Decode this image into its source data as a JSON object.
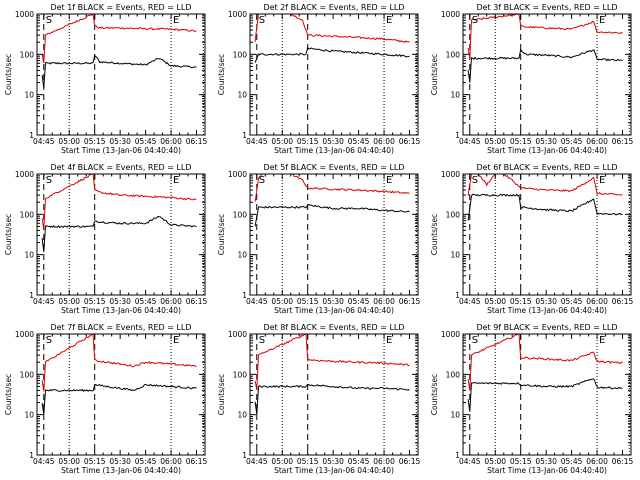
{
  "colors": {
    "events": "#000000",
    "lld": "#e00000",
    "axis": "#000000",
    "background": "#ffffff"
  },
  "chart_data": [
    {
      "type": "line",
      "title": "Det 1f BLACK = Events, RED = LLD",
      "xlabel": "Start Time (13-Jan-06 04:40:40)",
      "ylabel": "Counts/sec",
      "xtick_labels": [
        "04:45",
        "05:00",
        "05:15",
        "05:30",
        "05:45",
        "06:00",
        "06:15"
      ],
      "ytick_labels": [
        "1",
        "10",
        "100",
        "1000"
      ],
      "ylim": [
        1,
        1000
      ],
      "ylog": true,
      "markers": [
        {
          "label": "S",
          "x": "04:45"
        },
        {
          "label": "E",
          "x": "06:00"
        }
      ],
      "series": [
        {
          "color": "#000000",
          "x": [
            "04:44",
            "04:45",
            "04:46",
            "05:14",
            "05:15",
            "05:18",
            "05:30",
            "05:45",
            "05:53",
            "06:00",
            "06:15"
          ],
          "y": [
            30,
            15,
            60,
            60,
            95,
            65,
            60,
            55,
            80,
            52,
            48
          ]
        },
        {
          "color": "#e00000",
          "x": [
            "04:44",
            "04:45",
            "04:46",
            "05:14",
            "05:15",
            "05:18",
            "05:30",
            "05:45",
            "06:00",
            "06:15"
          ],
          "y": [
            100,
            60,
            300,
            1000,
            500,
            450,
            450,
            430,
            420,
            380
          ]
        }
      ]
    },
    {
      "type": "line",
      "title": "Det 2f BLACK = Events, RED = LLD",
      "xlabel": "Start Time (13-Jan-06 04:40:40)",
      "ylabel": "Counts/sec",
      "xtick_labels": [
        "04:45",
        "05:00",
        "05:15",
        "05:30",
        "05:45",
        "06:00",
        "06:15"
      ],
      "ytick_labels": [
        "1",
        "10",
        "100",
        "1000"
      ],
      "ylim": [
        1,
        1000
      ],
      "ylog": true,
      "markers": [
        {
          "label": "S",
          "x": "04:45"
        },
        {
          "label": "E",
          "x": "06:00"
        }
      ],
      "series": [
        {
          "color": "#000000",
          "x": [
            "04:44",
            "04:46",
            "05:14",
            "05:15",
            "05:30",
            "05:45",
            "06:00",
            "06:15"
          ],
          "y": [
            60,
            100,
            100,
            140,
            120,
            110,
            100,
            90
          ]
        },
        {
          "color": "#e00000",
          "x": [
            "04:44",
            "04:46",
            "04:48",
            "04:52",
            "05:05",
            "05:12",
            "05:15",
            "05:30",
            "05:45",
            "06:00",
            "06:15"
          ],
          "y": [
            200,
            1000,
            1000,
            1000,
            1000,
            700,
            300,
            280,
            260,
            240,
            200
          ]
        }
      ]
    },
    {
      "type": "line",
      "title": "Det 3f BLACK = Events, RED = LLD",
      "xlabel": "Start Time (13-Jan-06 04:40:40)",
      "ylabel": "Counts/sec",
      "xtick_labels": [
        "04:45",
        "05:00",
        "05:15",
        "05:30",
        "05:45",
        "06:00",
        "06:15"
      ],
      "ytick_labels": [
        "1",
        "10",
        "100",
        "1000"
      ],
      "ylim": [
        1,
        1000
      ],
      "ylog": true,
      "markers": [
        {
          "label": "S",
          "x": "04:45"
        },
        {
          "label": "E",
          "x": "06:00"
        }
      ],
      "series": [
        {
          "color": "#000000",
          "x": [
            "04:44",
            "04:45",
            "04:46",
            "05:14",
            "05:15",
            "05:18",
            "05:30",
            "05:45",
            "05:58",
            "06:00",
            "06:15"
          ],
          "y": [
            40,
            20,
            80,
            80,
            130,
            100,
            95,
            85,
            130,
            75,
            70
          ]
        },
        {
          "color": "#e00000",
          "x": [
            "04:44",
            "04:45",
            "04:46",
            "05:14",
            "05:15",
            "05:18",
            "05:30",
            "05:45",
            "05:58",
            "06:00",
            "06:15"
          ],
          "y": [
            150,
            80,
            700,
            1000,
            500,
            480,
            450,
            420,
            650,
            360,
            340
          ]
        }
      ]
    },
    {
      "type": "line",
      "title": "Det 4f BLACK = Events, RED = LLD",
      "xlabel": "Start Time (13-Jan-06 04:40:40)",
      "ylabel": "Counts/sec",
      "xtick_labels": [
        "04:45",
        "05:00",
        "05:15",
        "05:30",
        "05:45",
        "06:00",
        "06:15"
      ],
      "ytick_labels": [
        "1",
        "10",
        "100",
        "1000"
      ],
      "ylim": [
        1,
        1000
      ],
      "ylog": true,
      "markers": [
        {
          "label": "S",
          "x": "04:45"
        },
        {
          "label": "E",
          "x": "06:00"
        }
      ],
      "series": [
        {
          "color": "#000000",
          "x": [
            "04:44",
            "04:45",
            "04:46",
            "05:14",
            "05:15",
            "05:18",
            "05:30",
            "05:45",
            "05:53",
            "06:00",
            "06:15"
          ],
          "y": [
            25,
            12,
            50,
            50,
            70,
            65,
            60,
            60,
            90,
            55,
            50
          ]
        },
        {
          "color": "#e00000",
          "x": [
            "04:44",
            "04:45",
            "04:46",
            "05:14",
            "05:15",
            "05:18",
            "05:30",
            "05:45",
            "06:00",
            "06:15"
          ],
          "y": [
            80,
            40,
            250,
            1000,
            400,
            350,
            300,
            280,
            260,
            230
          ]
        }
      ]
    },
    {
      "type": "line",
      "title": "Det 5f BLACK = Events, RED = LLD",
      "xlabel": "Start Time (13-Jan-06 04:40:40)",
      "ylabel": "Counts/sec",
      "xtick_labels": [
        "04:45",
        "05:00",
        "05:15",
        "05:30",
        "05:45",
        "06:00",
        "06:15"
      ],
      "ytick_labels": [
        "1",
        "10",
        "100",
        "1000"
      ],
      "ylim": [
        1,
        1000
      ],
      "ylog": true,
      "markers": [
        {
          "label": "S",
          "x": "04:45"
        },
        {
          "label": "E",
          "x": "06:00"
        }
      ],
      "series": [
        {
          "color": "#000000",
          "x": [
            "04:44",
            "04:46",
            "05:14",
            "05:15",
            "05:30",
            "05:45",
            "06:00",
            "06:15"
          ],
          "y": [
            50,
            150,
            150,
            170,
            140,
            140,
            125,
            115
          ]
        },
        {
          "color": "#e00000",
          "x": [
            "04:44",
            "04:46",
            "04:48",
            "04:52",
            "05:05",
            "05:12",
            "05:15",
            "05:30",
            "05:45",
            "06:00",
            "06:15"
          ],
          "y": [
            200,
            800,
            1000,
            1000,
            1000,
            700,
            450,
            420,
            400,
            370,
            330
          ]
        }
      ]
    },
    {
      "type": "line",
      "title": "Det 6f BLACK = Events, RED = LLD",
      "xlabel": "Start Time (13-Jan-06 04:40:40)",
      "ylabel": "Counts/sec",
      "xtick_labels": [
        "04:45",
        "05:00",
        "05:15",
        "05:30",
        "05:45",
        "06:00",
        "06:15"
      ],
      "ytick_labels": [
        "1",
        "10",
        "100",
        "1000"
      ],
      "ylim": [
        1,
        1000
      ],
      "ylog": true,
      "markers": [
        {
          "label": "S",
          "x": "04:45"
        },
        {
          "label": "E",
          "x": "06:00"
        }
      ],
      "series": [
        {
          "color": "#000000",
          "x": [
            "04:44",
            "04:46",
            "05:14",
            "05:15",
            "05:30",
            "05:45",
            "05:58",
            "06:00",
            "06:15"
          ],
          "y": [
            70,
            300,
            300,
            150,
            130,
            120,
            240,
            105,
            100
          ]
        },
        {
          "color": "#e00000",
          "x": [
            "04:44",
            "04:46",
            "04:50",
            "04:55",
            "05:00",
            "05:05",
            "05:10",
            "05:15",
            "05:30",
            "05:45",
            "05:58",
            "06:00",
            "06:15"
          ],
          "y": [
            300,
            1000,
            1000,
            550,
            1000,
            1000,
            700,
            450,
            400,
            380,
            800,
            330,
            300
          ]
        }
      ]
    },
    {
      "type": "line",
      "title": "Det 7f BLACK = Events, RED = LLD",
      "xlabel": "Start Time (13-Jan-06 04:40:40)",
      "ylabel": "Counts/sec",
      "xtick_labels": [
        "04:45",
        "05:00",
        "05:15",
        "05:30",
        "05:45",
        "06:00",
        "06:15"
      ],
      "ytick_labels": [
        "1",
        "10",
        "100",
        "1000"
      ],
      "ylim": [
        1,
        1000
      ],
      "ylog": true,
      "markers": [
        {
          "label": "S",
          "x": "04:45"
        },
        {
          "label": "E",
          "x": "06:00"
        }
      ],
      "series": [
        {
          "color": "#000000",
          "x": [
            "04:44",
            "04:45",
            "04:46",
            "05:14",
            "05:15",
            "05:30",
            "05:38",
            "05:45",
            "06:00",
            "06:15"
          ],
          "y": [
            20,
            10,
            40,
            40,
            55,
            45,
            40,
            55,
            50,
            45
          ]
        },
        {
          "color": "#e00000",
          "x": [
            "04:44",
            "04:45",
            "04:46",
            "05:14",
            "05:15",
            "05:30",
            "05:38",
            "05:45",
            "06:00",
            "06:15"
          ],
          "y": [
            70,
            40,
            200,
            1000,
            220,
            180,
            160,
            200,
            180,
            160
          ]
        }
      ]
    },
    {
      "type": "line",
      "title": "Det 8f BLACK = Events, RED = LLD",
      "xlabel": "Start Time (13-Jan-06 04:40:40)",
      "ylabel": "Counts/sec",
      "xtick_labels": [
        "04:45",
        "05:00",
        "05:15",
        "05:30",
        "05:45",
        "06:00",
        "06:15"
      ],
      "ytick_labels": [
        "1",
        "10",
        "100",
        "1000"
      ],
      "ylim": [
        1,
        1000
      ],
      "ylog": true,
      "markers": [
        {
          "label": "S",
          "x": "04:45"
        },
        {
          "label": "E",
          "x": "06:00"
        }
      ],
      "series": [
        {
          "color": "#000000",
          "x": [
            "04:44",
            "04:45",
            "04:46",
            "05:14",
            "05:15",
            "05:30",
            "05:45",
            "06:00",
            "06:15"
          ],
          "y": [
            20,
            10,
            50,
            50,
            55,
            50,
            45,
            45,
            42
          ]
        },
        {
          "color": "#e00000",
          "x": [
            "04:44",
            "04:45",
            "04:46",
            "05:14",
            "05:15",
            "05:30",
            "05:45",
            "06:00",
            "06:15"
          ],
          "y": [
            70,
            40,
            300,
            1000,
            230,
            210,
            200,
            190,
            170
          ]
        }
      ]
    },
    {
      "type": "line",
      "title": "Det 9f BLACK = Events, RED = LLD",
      "xlabel": "Start Time (13-Jan-06 04:40:40)",
      "ylabel": "Counts/sec",
      "xtick_labels": [
        "04:45",
        "05:00",
        "05:15",
        "05:30",
        "05:45",
        "06:00",
        "06:15"
      ],
      "ytick_labels": [
        "1",
        "10",
        "100",
        "1000"
      ],
      "ylim": [
        1,
        1000
      ],
      "ylog": true,
      "markers": [
        {
          "label": "S",
          "x": "04:45"
        },
        {
          "label": "E",
          "x": "06:00"
        }
      ],
      "series": [
        {
          "color": "#000000",
          "x": [
            "04:44",
            "04:45",
            "04:46",
            "05:14",
            "05:15",
            "05:30",
            "05:45",
            "05:58",
            "06:00",
            "06:15"
          ],
          "y": [
            25,
            12,
            60,
            60,
            55,
            50,
            50,
            80,
            48,
            45
          ]
        },
        {
          "color": "#e00000",
          "x": [
            "04:44",
            "04:45",
            "04:46",
            "05:14",
            "05:15",
            "05:30",
            "05:45",
            "05:58",
            "06:00",
            "06:15"
          ],
          "y": [
            80,
            40,
            300,
            1000,
            260,
            240,
            220,
            350,
            210,
            190
          ]
        }
      ]
    }
  ]
}
